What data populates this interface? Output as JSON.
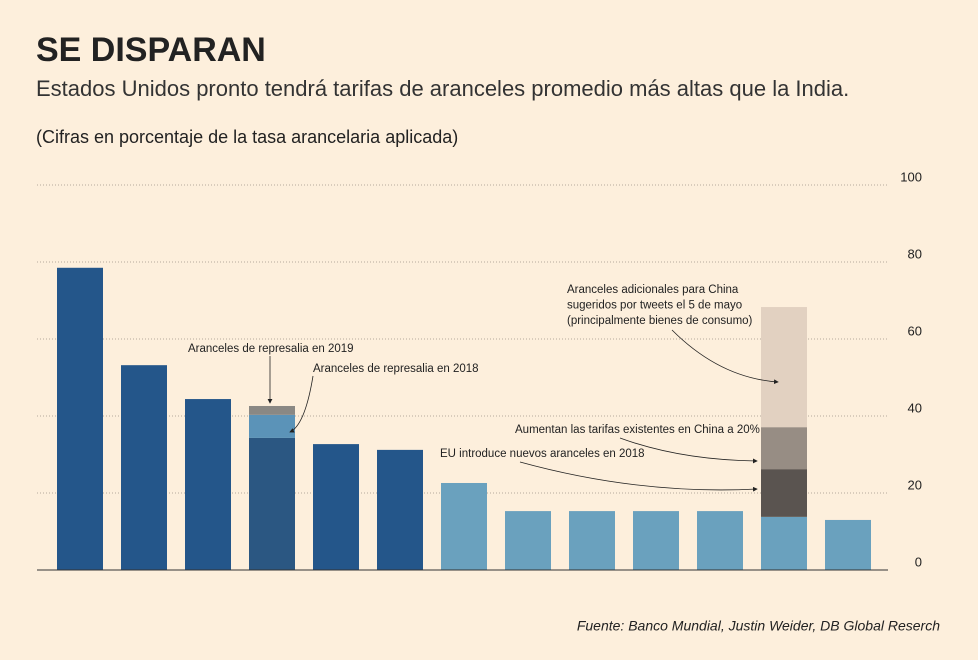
{
  "chart_data": {
    "type": "bar",
    "stacked": true,
    "title": "SE DISPARAN",
    "subtitle": "Estados Unidos pronto tendrá tarifas de aranceles promedio más altas que la India.",
    "note": "(Cifras en porcentaje de la tasa arancelaria aplicada)",
    "source": "Fuente: Banco Mundial, Justin Weider, DB Global Reserch",
    "categories": [
      null,
      null,
      null,
      null,
      null,
      null,
      null,
      null,
      null,
      null,
      null,
      null,
      null
    ],
    "series": [
      {
        "colors": [
          "#24568a",
          "#24568a",
          "#24568a",
          "#2b5782",
          "#24568a",
          "#24568a",
          "#6aa1be",
          "#6aa1be",
          "#6aa1be",
          "#6aa1be",
          "#6aa1be",
          "#6aa1be",
          "#6aa1be"
        ],
        "values": [
          78.5,
          53.2,
          44.4,
          34.3,
          32.7,
          31.2,
          22.6,
          15.3,
          15.3,
          15.3,
          15.3,
          13.8,
          13.0
        ]
      },
      {
        "color": "#5b93b8",
        "values": [
          null,
          null,
          null,
          6.0,
          null,
          null,
          null,
          null,
          null,
          null,
          null,
          null,
          null
        ]
      },
      {
        "color": "#8a8884",
        "values": [
          null,
          null,
          null,
          2.3,
          null,
          null,
          null,
          null,
          null,
          null,
          null,
          null,
          null
        ]
      },
      {
        "color": "#5a5450",
        "values": [
          null,
          null,
          null,
          null,
          null,
          null,
          null,
          null,
          null,
          null,
          null,
          12.4,
          null
        ]
      },
      {
        "color": "#978d84",
        "values": [
          null,
          null,
          null,
          null,
          null,
          null,
          null,
          null,
          null,
          null,
          null,
          10.9,
          null
        ]
      },
      {
        "color": "#e2d1c1",
        "values": [
          null,
          null,
          null,
          null,
          null,
          null,
          null,
          null,
          null,
          null,
          null,
          31.2,
          null
        ]
      }
    ],
    "annotations": [
      {
        "lines": [
          "Aranceles de represalia en 2019"
        ]
      },
      {
        "lines": [
          "Aranceles de represalia en 2018"
        ]
      },
      {
        "lines": [
          "Aumentan las tarifas existentes en China a 20%"
        ]
      },
      {
        "lines": [
          "EU introduce nuevos aranceles en 2018"
        ]
      },
      {
        "lines": [
          "Aranceles adicionales para China",
          "sugeridos por tweets el 5 de mayo",
          "(principalmente bienes de consumo)"
        ]
      }
    ],
    "ylim": [
      0,
      100
    ],
    "yticks": [
      0,
      20,
      40,
      60,
      80,
      100
    ],
    "grid": true
  }
}
